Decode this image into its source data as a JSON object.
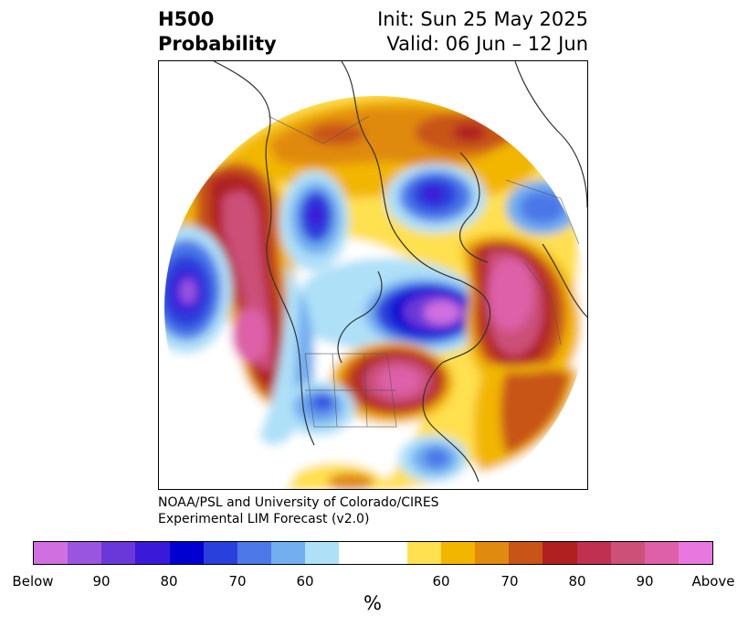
{
  "header": {
    "title_line1": "H500",
    "title_line2": "Probability",
    "init": "Init: Sun 25 May 2025",
    "valid": "Valid: 06 Jun – 12 Jun"
  },
  "credit": {
    "line1": "NOAA/PSL and University of Colorado/CIRES",
    "line2": "Experimental LIM Forecast (v2.0)"
  },
  "colorbar": {
    "colors": [
      "#d070e0",
      "#9a55e0",
      "#6a38d8",
      "#3a1ad8",
      "#0000d0",
      "#2a40dc",
      "#4c78e8",
      "#72aef0",
      "#aee0f8",
      "#ffffff",
      "#ffffff",
      "#ffe050",
      "#f2b600",
      "#e08a10",
      "#c85418",
      "#b02020",
      "#c03050",
      "#cc5078",
      "#dd60a8",
      "#e878e0"
    ],
    "tick_labels": [
      "Below",
      "90",
      "80",
      "70",
      "60",
      "60",
      "70",
      "80",
      "90",
      "Above"
    ],
    "unit": "%"
  },
  "map": {
    "projection": "north-polar-stereographic",
    "features": [
      "coastlines",
      "country-borders",
      "state-borders"
    ]
  }
}
